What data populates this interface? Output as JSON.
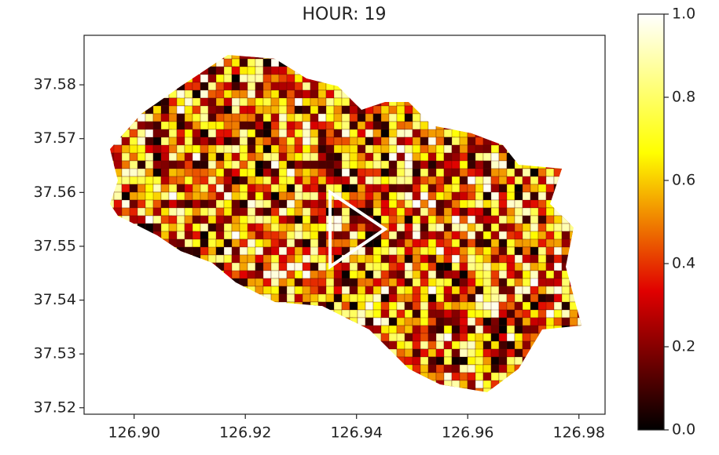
{
  "chart_data": {
    "type": "map",
    "title": "HOUR: 19",
    "xlim": [
      126.891,
      126.9847
    ],
    "ylim": [
      37.5188,
      37.5892
    ],
    "xticks": [
      {
        "value": 126.9,
        "label": "126.90"
      },
      {
        "value": 126.92,
        "label": "126.92"
      },
      {
        "value": 126.94,
        "label": "126.94"
      },
      {
        "value": 126.96,
        "label": "126.96"
      },
      {
        "value": 126.98,
        "label": "126.98"
      }
    ],
    "yticks": [
      37.52,
      37.53,
      37.54,
      37.55,
      37.56,
      37.57,
      37.58
    ],
    "colorbar": {
      "lim": [
        0,
        1
      ],
      "ticks": [
        {
          "value": 0,
          "label": "0.0"
        },
        {
          "value": 0.2,
          "label": "0.2"
        },
        {
          "value": 0.4,
          "label": "0.4"
        },
        {
          "value": 0.6,
          "label": "0.6"
        },
        {
          "value": 0.8,
          "label": "0.8"
        },
        {
          "value": 1,
          "label": "1.0"
        }
      ],
      "colors": [
        "#000000",
        "#e00000",
        "#ffff00",
        "#ffffff"
      ]
    }
  }
}
